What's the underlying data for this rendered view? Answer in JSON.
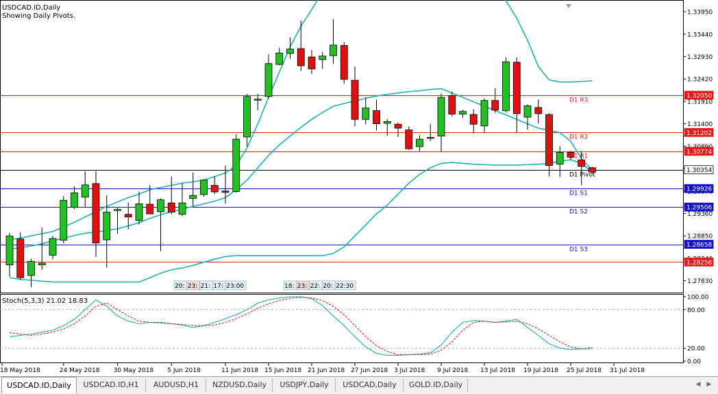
{
  "window": {
    "symbol_title": "USDCAD.ID,Daily",
    "subtitle": "Showing Daily Pivots."
  },
  "indicator": {
    "label": "Stoch(5,3,3) 21.02 18.83",
    "axis_labels": [
      "100.00",
      "80.00",
      "20.00",
      "0.00"
    ]
  },
  "price_axis": {
    "ticks": [
      "1.33950",
      "1.33440",
      "1.32930",
      "1.32420",
      "1.31910",
      "1.31400",
      "1.30890",
      "1.30380",
      "1.29870",
      "1.29360",
      "1.28850",
      "1.28340",
      "1.27830"
    ]
  },
  "pivots": [
    {
      "name": "D1 R3",
      "value": "1.32050",
      "color": "#e31a1c",
      "kind": "resistance"
    },
    {
      "name": "D1 R2",
      "value": "1.31202",
      "color": "#e31a1c",
      "kind": "resistance"
    },
    {
      "name": "D1 R1",
      "value": "1.30774",
      "color": "#e31a1c",
      "kind": "resistance"
    },
    {
      "name": "D1 Pivot",
      "value": "1.30354",
      "color": "#000000",
      "kind": "pivot"
    },
    {
      "name": "D1 S1",
      "value": "1.29926",
      "color": "#1010c8",
      "kind": "support"
    },
    {
      "name": "D1 S2",
      "value": "1.29506",
      "color": "#1010c8",
      "kind": "support"
    },
    {
      "name": "D1 S3",
      "value": "1.28658",
      "color": "#1010c8",
      "kind": "support"
    },
    {
      "name": "",
      "value": "1.28256",
      "color": "#e31a1c",
      "kind": "extra"
    }
  ],
  "date_axis": [
    "18 May 2018",
    "24 May 2018",
    "30 May 2018",
    "5 Jun 2018",
    "11 Jun 2018",
    "15 Jun 2018",
    "21 Jun 2018",
    "27 Jun 2018",
    "3 Jul 2018",
    "9 Jul 2018",
    "13 Jul 2018",
    "19 Jul 2018",
    "25 Jul 2018",
    "31 Jul 2018"
  ],
  "time_boxes": [
    {
      "items": [
        "20:",
        "23:",
        "21:",
        "17:",
        "23:00"
      ]
    },
    {
      "items": [
        "18:",
        "23:",
        "22:",
        "20:",
        "22:30"
      ]
    }
  ],
  "colors": {
    "bull": "#22c022",
    "bear": "#e01010",
    "band": "#20b0b0",
    "stoch_main": "#20b0b0",
    "stoch_signal": "#e02020"
  },
  "chart_data": {
    "type": "candlestick",
    "series": [
      {
        "date": "2018-05-16",
        "o": 1.2819,
        "h": 1.2892,
        "l": 1.2792,
        "c": 1.2885
      },
      {
        "date": "2018-05-17",
        "o": 1.2878,
        "h": 1.2893,
        "l": 1.2785,
        "c": 1.279
      },
      {
        "date": "2018-05-18",
        "o": 1.2795,
        "h": 1.2833,
        "l": 1.2768,
        "c": 1.2827
      },
      {
        "date": "2018-05-21",
        "o": 1.2819,
        "h": 1.2904,
        "l": 1.2808,
        "c": 1.2823
      },
      {
        "date": "2018-05-22",
        "o": 1.2841,
        "h": 1.2885,
        "l": 1.2832,
        "c": 1.2879
      },
      {
        "date": "2018-05-23",
        "o": 1.2875,
        "h": 1.2976,
        "l": 1.2868,
        "c": 1.2966
      },
      {
        "date": "2018-05-24",
        "o": 1.295,
        "h": 1.2998,
        "l": 1.2946,
        "c": 1.2983
      },
      {
        "date": "2018-05-25",
        "o": 1.2973,
        "h": 1.3032,
        "l": 1.2951,
        "c": 1.3001
      },
      {
        "date": "2018-05-28",
        "o": 1.3004,
        "h": 1.3032,
        "l": 1.2837,
        "c": 1.2869
      },
      {
        "date": "2018-05-29",
        "o": 1.2876,
        "h": 1.2977,
        "l": 1.2813,
        "c": 1.2939
      },
      {
        "date": "2018-05-30",
        "o": 1.2943,
        "h": 1.2949,
        "l": 1.289,
        "c": 1.2945
      },
      {
        "date": "2018-05-31",
        "o": 1.2934,
        "h": 1.2961,
        "l": 1.29,
        "c": 1.2928
      },
      {
        "date": "2018-06-01",
        "o": 1.292,
        "h": 1.2986,
        "l": 1.2911,
        "c": 1.2958
      },
      {
        "date": "2018-06-04",
        "o": 1.2957,
        "h": 1.3,
        "l": 1.2938,
        "c": 1.2935
      },
      {
        "date": "2018-06-05",
        "o": 1.294,
        "h": 1.297,
        "l": 1.285,
        "c": 1.2967
      },
      {
        "date": "2018-06-06",
        "o": 1.296,
        "h": 1.302,
        "l": 1.2934,
        "c": 1.2939
      },
      {
        "date": "2018-06-07",
        "o": 1.2934,
        "h": 1.3005,
        "l": 1.293,
        "c": 1.296
      },
      {
        "date": "2018-06-08",
        "o": 1.297,
        "h": 1.3029,
        "l": 1.2953,
        "c": 1.2977
      },
      {
        "date": "2018-06-11",
        "o": 1.2979,
        "h": 1.3013,
        "l": 1.2974,
        "c": 1.3012
      },
      {
        "date": "2018-06-12",
        "o": 1.3,
        "h": 1.3021,
        "l": 1.298,
        "c": 1.2985
      },
      {
        "date": "2018-06-13",
        "o": 1.2987,
        "h": 1.3045,
        "l": 1.2958,
        "c": 1.2984
      },
      {
        "date": "2018-06-14",
        "o": 1.2986,
        "h": 1.3116,
        "l": 1.2983,
        "c": 1.3105
      },
      {
        "date": "2018-06-15",
        "o": 1.311,
        "h": 1.3208,
        "l": 1.3088,
        "c": 1.3202
      },
      {
        "date": "2018-06-18",
        "o": 1.3196,
        "h": 1.3208,
        "l": 1.3171,
        "c": 1.3196
      },
      {
        "date": "2018-06-19",
        "o": 1.3202,
        "h": 1.3298,
        "l": 1.3197,
        "c": 1.3277
      },
      {
        "date": "2018-06-20",
        "o": 1.3275,
        "h": 1.3313,
        "l": 1.3273,
        "c": 1.3301
      },
      {
        "date": "2018-06-21",
        "o": 1.33,
        "h": 1.3336,
        "l": 1.3288,
        "c": 1.331
      },
      {
        "date": "2018-06-22",
        "o": 1.3311,
        "h": 1.3375,
        "l": 1.326,
        "c": 1.3272
      },
      {
        "date": "2018-06-25",
        "o": 1.3292,
        "h": 1.3308,
        "l": 1.3253,
        "c": 1.3265
      },
      {
        "date": "2018-06-26",
        "o": 1.3286,
        "h": 1.3304,
        "l": 1.3265,
        "c": 1.3294
      },
      {
        "date": "2018-06-27",
        "o": 1.3295,
        "h": 1.3378,
        "l": 1.3277,
        "c": 1.3319
      },
      {
        "date": "2018-06-28",
        "o": 1.3318,
        "h": 1.3326,
        "l": 1.3231,
        "c": 1.3241
      },
      {
        "date": "2018-06-29",
        "o": 1.3239,
        "h": 1.327,
        "l": 1.3134,
        "c": 1.315
      },
      {
        "date": "2018-07-02",
        "o": 1.315,
        "h": 1.32,
        "l": 1.3139,
        "c": 1.3176
      },
      {
        "date": "2018-07-03",
        "o": 1.317,
        "h": 1.3195,
        "l": 1.3125,
        "c": 1.314
      },
      {
        "date": "2018-07-04",
        "o": 1.3141,
        "h": 1.3151,
        "l": 1.3113,
        "c": 1.3145
      },
      {
        "date": "2018-07-05",
        "o": 1.3139,
        "h": 1.3143,
        "l": 1.311,
        "c": 1.313
      },
      {
        "date": "2018-07-06",
        "o": 1.3126,
        "h": 1.3134,
        "l": 1.3081,
        "c": 1.3083
      },
      {
        "date": "2018-07-09",
        "o": 1.3088,
        "h": 1.3114,
        "l": 1.3076,
        "c": 1.3105
      },
      {
        "date": "2018-07-10",
        "o": 1.3107,
        "h": 1.314,
        "l": 1.3101,
        "c": 1.3109
      },
      {
        "date": "2018-07-11",
        "o": 1.3112,
        "h": 1.3209,
        "l": 1.3077,
        "c": 1.32
      },
      {
        "date": "2018-07-12",
        "o": 1.3204,
        "h": 1.3213,
        "l": 1.3157,
        "c": 1.3162
      },
      {
        "date": "2018-07-13",
        "o": 1.3162,
        "h": 1.3172,
        "l": 1.3153,
        "c": 1.3168
      },
      {
        "date": "2018-07-16",
        "o": 1.3161,
        "h": 1.3173,
        "l": 1.3118,
        "c": 1.3139
      },
      {
        "date": "2018-07-17",
        "o": 1.3135,
        "h": 1.3198,
        "l": 1.3119,
        "c": 1.3193
      },
      {
        "date": "2018-07-18",
        "o": 1.3193,
        "h": 1.3221,
        "l": 1.3165,
        "c": 1.3171
      },
      {
        "date": "2018-07-19",
        "o": 1.317,
        "h": 1.3291,
        "l": 1.3166,
        "c": 1.3281
      },
      {
        "date": "2018-07-20",
        "o": 1.328,
        "h": 1.3291,
        "l": 1.312,
        "c": 1.3163
      },
      {
        "date": "2018-07-23",
        "o": 1.3155,
        "h": 1.3184,
        "l": 1.3127,
        "c": 1.3181
      },
      {
        "date": "2018-07-24",
        "o": 1.3177,
        "h": 1.3195,
        "l": 1.3141,
        "c": 1.3163
      },
      {
        "date": "2018-07-25",
        "o": 1.3161,
        "h": 1.3164,
        "l": 1.302,
        "c": 1.3045
      },
      {
        "date": "2018-07-26",
        "o": 1.3048,
        "h": 1.3089,
        "l": 1.3019,
        "c": 1.3075
      },
      {
        "date": "2018-07-27",
        "o": 1.3075,
        "h": 1.3078,
        "l": 1.3058,
        "c": 1.3064
      },
      {
        "date": "2018-07-30",
        "o": 1.3058,
        "h": 1.3078,
        "l": 1.3,
        "c": 1.3043
      },
      {
        "date": "2018-07-31",
        "o": 1.304,
        "h": 1.3042,
        "l": 1.3027,
        "c": 1.303
      }
    ],
    "bollinger": {
      "upper": [
        1.2876,
        1.288,
        1.2885,
        1.289,
        1.2895,
        1.2905,
        1.2916,
        1.2928,
        1.294,
        1.2952,
        1.2962,
        1.2972,
        1.298,
        1.299,
        1.2995,
        1.3,
        1.3005,
        1.3008,
        1.3012,
        1.302,
        1.3028,
        1.3045,
        1.3085,
        1.314,
        1.32,
        1.3258,
        1.3315,
        1.3362,
        1.34,
        1.344,
        1.348,
        1.352,
        1.356,
        1.359,
        1.361,
        1.362,
        1.362,
        1.361,
        1.359,
        1.3575,
        1.356,
        1.3548,
        1.354,
        1.352,
        1.35,
        1.346,
        1.342,
        1.338,
        1.333,
        1.327,
        1.324,
        1.3235,
        1.3235,
        1.3236,
        1.3238
      ],
      "middle": [
        1.2855,
        1.2858,
        1.2862,
        1.2867,
        1.2874,
        1.288,
        1.2886,
        1.2891,
        1.2894,
        1.2897,
        1.2901,
        1.2908,
        1.2915,
        1.2925,
        1.2933,
        1.294,
        1.2946,
        1.2952,
        1.2958,
        1.2964,
        1.2972,
        1.299,
        1.3012,
        1.304,
        1.3068,
        1.3092,
        1.3112,
        1.3132,
        1.315,
        1.3166,
        1.318,
        1.3186,
        1.3192,
        1.3198,
        1.3203,
        1.3207,
        1.321,
        1.3213,
        1.3215,
        1.3218,
        1.322,
        1.321,
        1.32,
        1.319,
        1.318,
        1.317,
        1.316,
        1.315,
        1.314,
        1.313,
        1.3125,
        1.312,
        1.31,
        1.306,
        1.3035
      ],
      "lower": [
        1.279,
        1.2786,
        1.2784,
        1.2782,
        1.278,
        1.278,
        1.278,
        1.278,
        1.278,
        1.278,
        1.278,
        1.278,
        1.278,
        1.279,
        1.28,
        1.2808,
        1.2812,
        1.2818,
        1.2825,
        1.2832,
        1.2838,
        1.284,
        1.284,
        1.284,
        1.284,
        1.284,
        1.284,
        1.284,
        1.284,
        1.284,
        1.2845,
        1.286,
        1.2885,
        1.291,
        1.2935,
        1.2955,
        1.298,
        1.3005,
        1.3025,
        1.304,
        1.305,
        1.3052,
        1.305,
        1.3048,
        1.3047,
        1.3046,
        1.3046,
        1.3046,
        1.3047,
        1.3048,
        1.305,
        1.3055,
        1.3058,
        1.305,
        1.303
      ]
    },
    "stoch_main": [
      38,
      40,
      42,
      45,
      48,
      55,
      65,
      80,
      95,
      85,
      70,
      62,
      58,
      60,
      60,
      58,
      56,
      52,
      55,
      60,
      66,
      72,
      80,
      90,
      95,
      98,
      100,
      100,
      97,
      86,
      70,
      55,
      38,
      22,
      12,
      9,
      9,
      10,
      11,
      13,
      25,
      45,
      60,
      63,
      62,
      60,
      62,
      65,
      52,
      40,
      27,
      20,
      18,
      19,
      21
    ],
    "stoch_signal": [
      44,
      42,
      40,
      42,
      45,
      50,
      58,
      70,
      85,
      90,
      80,
      70,
      62,
      60,
      59,
      58,
      57,
      55,
      55,
      56,
      60,
      66,
      73,
      82,
      89,
      94,
      98,
      99,
      98,
      94,
      85,
      72,
      55,
      38,
      24,
      15,
      10,
      10,
      10,
      11,
      17,
      30,
      48,
      60,
      62,
      60,
      61,
      62,
      58,
      50,
      40,
      30,
      22,
      19,
      19
    ],
    "ylim": [
      1.2756,
      1.342
    ],
    "stoch_ylim": [
      0,
      100
    ]
  },
  "tabs": [
    {
      "label": "USDCAD.ID,Daily",
      "active": true
    },
    {
      "label": "USDCAD.ID,H1",
      "active": false
    },
    {
      "label": "AUDUSD,H1",
      "active": false
    },
    {
      "label": "NZDUSD,Daily",
      "active": false
    },
    {
      "label": "USDJPY,Daily",
      "active": false
    },
    {
      "label": "USDCAD,Daily",
      "active": false
    },
    {
      "label": "GOLD.ID,Daily",
      "active": false
    }
  ]
}
